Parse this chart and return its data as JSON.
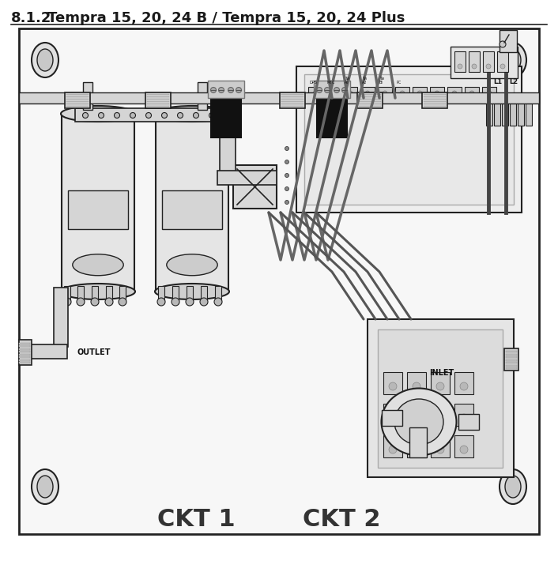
{
  "title_prefix": "8.1.2",
  "title_main": "Tempra 15, 20, 24 B / Tempra 15, 20, 24 Plus",
  "title_fontsize": 13,
  "ckt1_label": "CKT 1",
  "ckt2_label": "CKT 2",
  "outlet_label": "OUTLET",
  "inlet_label": "INLET",
  "bg_color": "#ffffff",
  "line_color": "#222222",
  "dark_color": "#111111",
  "fill_light": "#e8e8e8",
  "fill_mid": "#d5d5d5",
  "fill_dark": "#bbbbbb"
}
